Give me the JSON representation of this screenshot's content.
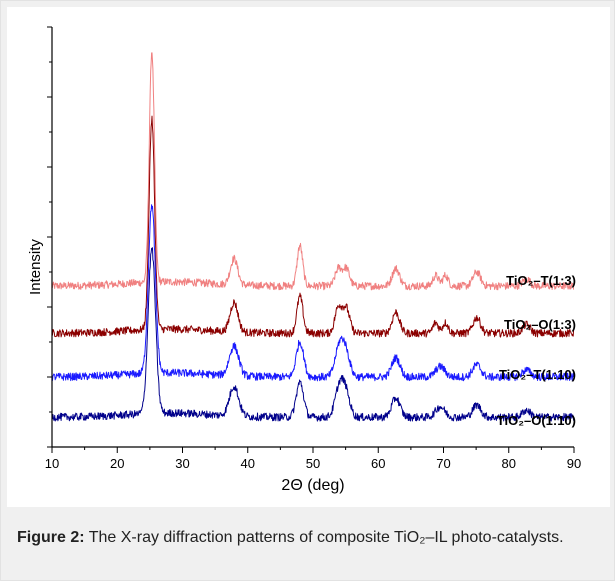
{
  "caption": {
    "label": "Figure 2:",
    "text": "The X-ray diffraction patterns of composite TiO₂–IL photo-catalysts."
  },
  "chart_data": {
    "type": "line",
    "xlabel": "2Θ (deg)",
    "ylabel": "Intensity",
    "xlim": [
      10,
      90
    ],
    "x_ticks": [
      10,
      20,
      30,
      40,
      50,
      60,
      70,
      80,
      90
    ],
    "grid": false,
    "series": [
      {
        "name": "TiO₂–T(1:3)",
        "color": "#f08080",
        "baseline": 4.6,
        "peaks": [
          {
            "x": 25.3,
            "height": 6.6,
            "width": 0.55
          },
          {
            "x": 37.9,
            "height": 0.75,
            "width": 0.8
          },
          {
            "x": 48.0,
            "height": 1.15,
            "width": 0.6
          },
          {
            "x": 53.9,
            "height": 0.5,
            "width": 0.7
          },
          {
            "x": 55.1,
            "height": 0.5,
            "width": 0.7
          },
          {
            "x": 62.7,
            "height": 0.5,
            "width": 0.8
          },
          {
            "x": 68.8,
            "height": 0.3,
            "width": 0.6
          },
          {
            "x": 70.3,
            "height": 0.3,
            "width": 0.6
          },
          {
            "x": 75.1,
            "height": 0.4,
            "width": 0.8
          },
          {
            "x": 82.7,
            "height": 0.2,
            "width": 0.8
          }
        ]
      },
      {
        "name": "TiO₂–O(1:3)",
        "color": "#8b0000",
        "baseline": 3.25,
        "peaks": [
          {
            "x": 25.3,
            "height": 6.0,
            "width": 0.6
          },
          {
            "x": 37.9,
            "height": 0.85,
            "width": 0.85
          },
          {
            "x": 48.0,
            "height": 1.05,
            "width": 0.65
          },
          {
            "x": 53.9,
            "height": 0.75,
            "width": 0.75
          },
          {
            "x": 55.1,
            "height": 0.7,
            "width": 0.75
          },
          {
            "x": 62.7,
            "height": 0.6,
            "width": 0.8
          },
          {
            "x": 68.8,
            "height": 0.3,
            "width": 0.6
          },
          {
            "x": 70.3,
            "height": 0.3,
            "width": 0.6
          },
          {
            "x": 75.1,
            "height": 0.45,
            "width": 0.8
          },
          {
            "x": 82.7,
            "height": 0.25,
            "width": 0.8
          }
        ]
      },
      {
        "name": "TiO₂–T(1:10)",
        "color": "#1a1aff",
        "baseline": 2.0,
        "peaks": [
          {
            "x": 25.3,
            "height": 4.8,
            "width": 0.75
          },
          {
            "x": 37.9,
            "height": 0.85,
            "width": 1.0
          },
          {
            "x": 48.0,
            "height": 1.0,
            "width": 0.8
          },
          {
            "x": 54.0,
            "height": 0.8,
            "width": 0.9
          },
          {
            "x": 55.0,
            "height": 0.7,
            "width": 0.9
          },
          {
            "x": 62.7,
            "height": 0.55,
            "width": 0.9
          },
          {
            "x": 69.5,
            "height": 0.3,
            "width": 1.0
          },
          {
            "x": 75.1,
            "height": 0.35,
            "width": 0.9
          },
          {
            "x": 82.7,
            "height": 0.2,
            "width": 0.9
          }
        ]
      },
      {
        "name": "TiO₂–O(1:10)",
        "color": "#00008b",
        "baseline": 0.85,
        "peaks": [
          {
            "x": 25.3,
            "height": 4.7,
            "width": 0.8
          },
          {
            "x": 37.9,
            "height": 0.85,
            "width": 1.0
          },
          {
            "x": 48.0,
            "height": 1.0,
            "width": 0.8
          },
          {
            "x": 54.0,
            "height": 0.8,
            "width": 0.9
          },
          {
            "x": 55.0,
            "height": 0.7,
            "width": 0.9
          },
          {
            "x": 62.7,
            "height": 0.55,
            "width": 0.9
          },
          {
            "x": 69.5,
            "height": 0.3,
            "width": 1.0
          },
          {
            "x": 75.1,
            "height": 0.35,
            "width": 0.9
          },
          {
            "x": 82.7,
            "height": 0.2,
            "width": 0.9
          }
        ]
      }
    ],
    "ylim": [
      0,
      12
    ],
    "y_tick_values": [
      0,
      2,
      4,
      6,
      8,
      10,
      12
    ],
    "y_tick_labels_shown": false
  }
}
